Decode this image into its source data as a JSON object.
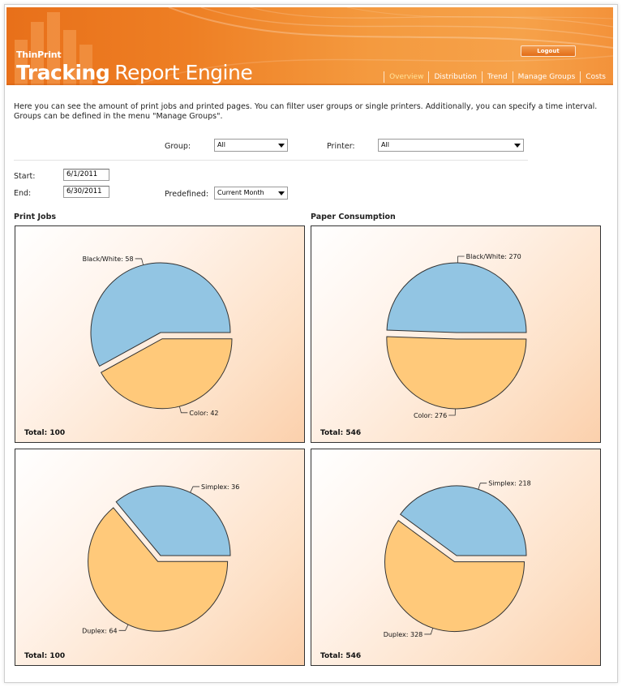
{
  "header": {
    "brand_small": "ThinPrint",
    "brand_bold": "Tracking",
    "brand_rest": "Report Engine",
    "logout_label": "Logout",
    "nav": [
      {
        "label": "Overview",
        "active": true
      },
      {
        "label": "Distribution",
        "active": false
      },
      {
        "label": "Trend",
        "active": false
      },
      {
        "label": "Manage Groups",
        "active": false
      },
      {
        "label": "Costs",
        "active": false
      }
    ]
  },
  "intro_text": "Here you can see the amount of print jobs and printed pages. You can filter user groups or single printers. Additionally, you can specify a time interval. Groups can be defined in the menu \"Manage Groups\".",
  "filters": {
    "group_label": "Group:",
    "group_value": "All",
    "printer_label": "Printer:",
    "printer_value": "All",
    "start_label": "Start:",
    "start_value": "6/1/2011",
    "end_label": "End:",
    "end_value": "6/30/2011",
    "predefined_label": "Predefined:",
    "predefined_value": "Current Month"
  },
  "sections": {
    "print_jobs": "Print Jobs",
    "paper_consumption": "Paper Consumption"
  },
  "colors": {
    "blue_slice": "#92c5e3",
    "orange_slice": "#ffc97a",
    "accent": "#e8701a"
  },
  "chart_data": [
    {
      "type": "pie",
      "title": "Print Jobs",
      "labels": [
        "Black/White",
        "Color"
      ],
      "values": [
        58,
        42
      ],
      "total_label": "Total: 100",
      "exploded": "Color"
    },
    {
      "type": "pie",
      "title": "Paper Consumption",
      "labels": [
        "Black/White",
        "Color"
      ],
      "values": [
        270,
        276
      ],
      "total_label": "Total: 546",
      "exploded": "Color"
    },
    {
      "type": "pie",
      "labels": [
        "Simplex",
        "Duplex"
      ],
      "values": [
        36,
        64
      ],
      "total_label": "Total: 100",
      "exploded": "Duplex"
    },
    {
      "type": "pie",
      "labels": [
        "Simplex",
        "Duplex"
      ],
      "values": [
        218,
        328
      ],
      "total_label": "Total: 546",
      "exploded": "Duplex"
    }
  ]
}
